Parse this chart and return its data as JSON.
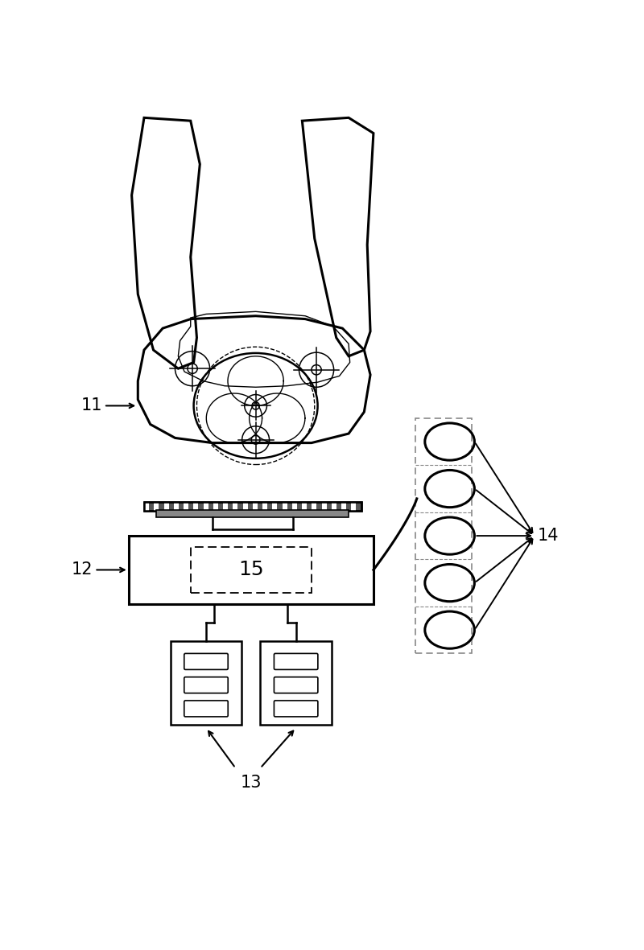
{
  "bg_color": "#ffffff",
  "line_color": "#000000",
  "label_11": "11",
  "label_12": "12",
  "label_13": "13",
  "label_14": "14",
  "label_15": "15",
  "fig_width": 8.0,
  "fig_height": 11.81
}
